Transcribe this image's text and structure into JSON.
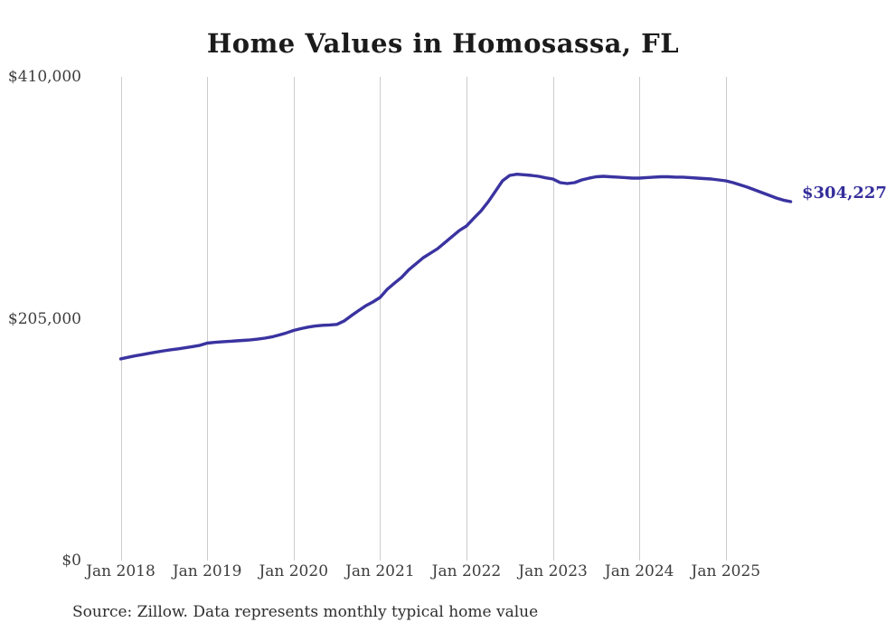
{
  "chart": {
    "title": "Home Values in Homosassa, FL",
    "end_label": "$304,227",
    "source": "Source: Zillow. Data represents monthly typical home value"
  },
  "chart_data": {
    "type": "line",
    "title": "Home Values in Homosassa, FL",
    "xlabel": "",
    "ylabel": "",
    "start_month": "2018-01",
    "end_month": "2025-10",
    "frequency": "monthly",
    "ylim": [
      0,
      410000
    ],
    "grid": "vertical-only",
    "line_color": "#3a33a0",
    "x_ticks": [
      "Jan 2018",
      "Jan 2019",
      "Jan 2020",
      "Jan 2021",
      "Jan 2022",
      "Jan 2023",
      "Jan 2024",
      "Jan 2025"
    ],
    "y_ticks": [
      {
        "label": "$410,000",
        "value": 410000
      },
      {
        "label": "$205,000",
        "value": 205000
      },
      {
        "label": "$0",
        "value": 0
      }
    ],
    "series": [
      {
        "name": "Typical home value",
        "values": [
          171000,
          172300,
          173500,
          174600,
          175700,
          176800,
          177800,
          178700,
          179500,
          180400,
          181400,
          182500,
          184300,
          184900,
          185400,
          185800,
          186200,
          186600,
          187100,
          187700,
          188500,
          189600,
          191200,
          193000,
          195000,
          196600,
          197900,
          198800,
          199400,
          199700,
          200200,
          203000,
          207500,
          211800,
          215900,
          219200,
          223000,
          229900,
          235100,
          240100,
          246500,
          251600,
          256700,
          260500,
          264400,
          269500,
          274600,
          279700,
          283600,
          290000,
          296300,
          304000,
          312900,
          321900,
          326500,
          327500,
          327000,
          326500,
          325700,
          324400,
          323400,
          320300,
          319600,
          320300,
          322600,
          324100,
          325300,
          325700,
          325300,
          325000,
          324600,
          324200,
          324200,
          324600,
          325000,
          325300,
          325300,
          325000,
          325000,
          324600,
          324200,
          323800,
          323400,
          322600,
          321900,
          320300,
          318400,
          316500,
          314200,
          311900,
          309600,
          307300,
          305500,
          304227
        ]
      }
    ],
    "annotations": [
      {
        "text": "$304,227",
        "attached_to": "last-point",
        "color": "#352e9b"
      }
    ]
  }
}
